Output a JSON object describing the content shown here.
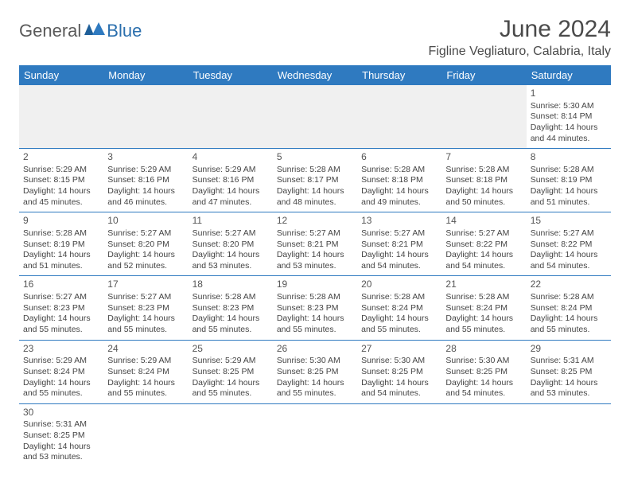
{
  "logo": {
    "text1": "General",
    "text2": "Blue"
  },
  "title": "June 2024",
  "location": "Figline Vegliaturo, Calabria, Italy",
  "colors": {
    "header_bg": "#2f7ac0",
    "header_text": "#ffffff",
    "border": "#2f7ac0",
    "body_text": "#444444",
    "title_text": "#4a4a4a",
    "logo_gray": "#5a5a5a",
    "logo_blue": "#2b6fad",
    "empty_row_bg": "#f0f0f0"
  },
  "weekdays": [
    "Sunday",
    "Monday",
    "Tuesday",
    "Wednesday",
    "Thursday",
    "Friday",
    "Saturday"
  ],
  "weeks": [
    [
      null,
      null,
      null,
      null,
      null,
      null,
      {
        "n": "1",
        "sr": "Sunrise: 5:30 AM",
        "ss": "Sunset: 8:14 PM",
        "dl": "Daylight: 14 hours and 44 minutes."
      }
    ],
    [
      {
        "n": "2",
        "sr": "Sunrise: 5:29 AM",
        "ss": "Sunset: 8:15 PM",
        "dl": "Daylight: 14 hours and 45 minutes."
      },
      {
        "n": "3",
        "sr": "Sunrise: 5:29 AM",
        "ss": "Sunset: 8:16 PM",
        "dl": "Daylight: 14 hours and 46 minutes."
      },
      {
        "n": "4",
        "sr": "Sunrise: 5:29 AM",
        "ss": "Sunset: 8:16 PM",
        "dl": "Daylight: 14 hours and 47 minutes."
      },
      {
        "n": "5",
        "sr": "Sunrise: 5:28 AM",
        "ss": "Sunset: 8:17 PM",
        "dl": "Daylight: 14 hours and 48 minutes."
      },
      {
        "n": "6",
        "sr": "Sunrise: 5:28 AM",
        "ss": "Sunset: 8:18 PM",
        "dl": "Daylight: 14 hours and 49 minutes."
      },
      {
        "n": "7",
        "sr": "Sunrise: 5:28 AM",
        "ss": "Sunset: 8:18 PM",
        "dl": "Daylight: 14 hours and 50 minutes."
      },
      {
        "n": "8",
        "sr": "Sunrise: 5:28 AM",
        "ss": "Sunset: 8:19 PM",
        "dl": "Daylight: 14 hours and 51 minutes."
      }
    ],
    [
      {
        "n": "9",
        "sr": "Sunrise: 5:28 AM",
        "ss": "Sunset: 8:19 PM",
        "dl": "Daylight: 14 hours and 51 minutes."
      },
      {
        "n": "10",
        "sr": "Sunrise: 5:27 AM",
        "ss": "Sunset: 8:20 PM",
        "dl": "Daylight: 14 hours and 52 minutes."
      },
      {
        "n": "11",
        "sr": "Sunrise: 5:27 AM",
        "ss": "Sunset: 8:20 PM",
        "dl": "Daylight: 14 hours and 53 minutes."
      },
      {
        "n": "12",
        "sr": "Sunrise: 5:27 AM",
        "ss": "Sunset: 8:21 PM",
        "dl": "Daylight: 14 hours and 53 minutes."
      },
      {
        "n": "13",
        "sr": "Sunrise: 5:27 AM",
        "ss": "Sunset: 8:21 PM",
        "dl": "Daylight: 14 hours and 54 minutes."
      },
      {
        "n": "14",
        "sr": "Sunrise: 5:27 AM",
        "ss": "Sunset: 8:22 PM",
        "dl": "Daylight: 14 hours and 54 minutes."
      },
      {
        "n": "15",
        "sr": "Sunrise: 5:27 AM",
        "ss": "Sunset: 8:22 PM",
        "dl": "Daylight: 14 hours and 54 minutes."
      }
    ],
    [
      {
        "n": "16",
        "sr": "Sunrise: 5:27 AM",
        "ss": "Sunset: 8:23 PM",
        "dl": "Daylight: 14 hours and 55 minutes."
      },
      {
        "n": "17",
        "sr": "Sunrise: 5:27 AM",
        "ss": "Sunset: 8:23 PM",
        "dl": "Daylight: 14 hours and 55 minutes."
      },
      {
        "n": "18",
        "sr": "Sunrise: 5:28 AM",
        "ss": "Sunset: 8:23 PM",
        "dl": "Daylight: 14 hours and 55 minutes."
      },
      {
        "n": "19",
        "sr": "Sunrise: 5:28 AM",
        "ss": "Sunset: 8:23 PM",
        "dl": "Daylight: 14 hours and 55 minutes."
      },
      {
        "n": "20",
        "sr": "Sunrise: 5:28 AM",
        "ss": "Sunset: 8:24 PM",
        "dl": "Daylight: 14 hours and 55 minutes."
      },
      {
        "n": "21",
        "sr": "Sunrise: 5:28 AM",
        "ss": "Sunset: 8:24 PM",
        "dl": "Daylight: 14 hours and 55 minutes."
      },
      {
        "n": "22",
        "sr": "Sunrise: 5:28 AM",
        "ss": "Sunset: 8:24 PM",
        "dl": "Daylight: 14 hours and 55 minutes."
      }
    ],
    [
      {
        "n": "23",
        "sr": "Sunrise: 5:29 AM",
        "ss": "Sunset: 8:24 PM",
        "dl": "Daylight: 14 hours and 55 minutes."
      },
      {
        "n": "24",
        "sr": "Sunrise: 5:29 AM",
        "ss": "Sunset: 8:24 PM",
        "dl": "Daylight: 14 hours and 55 minutes."
      },
      {
        "n": "25",
        "sr": "Sunrise: 5:29 AM",
        "ss": "Sunset: 8:25 PM",
        "dl": "Daylight: 14 hours and 55 minutes."
      },
      {
        "n": "26",
        "sr": "Sunrise: 5:30 AM",
        "ss": "Sunset: 8:25 PM",
        "dl": "Daylight: 14 hours and 55 minutes."
      },
      {
        "n": "27",
        "sr": "Sunrise: 5:30 AM",
        "ss": "Sunset: 8:25 PM",
        "dl": "Daylight: 14 hours and 54 minutes."
      },
      {
        "n": "28",
        "sr": "Sunrise: 5:30 AM",
        "ss": "Sunset: 8:25 PM",
        "dl": "Daylight: 14 hours and 54 minutes."
      },
      {
        "n": "29",
        "sr": "Sunrise: 5:31 AM",
        "ss": "Sunset: 8:25 PM",
        "dl": "Daylight: 14 hours and 53 minutes."
      }
    ],
    [
      {
        "n": "30",
        "sr": "Sunrise: 5:31 AM",
        "ss": "Sunset: 8:25 PM",
        "dl": "Daylight: 14 hours and 53 minutes."
      },
      null,
      null,
      null,
      null,
      null,
      null
    ]
  ]
}
